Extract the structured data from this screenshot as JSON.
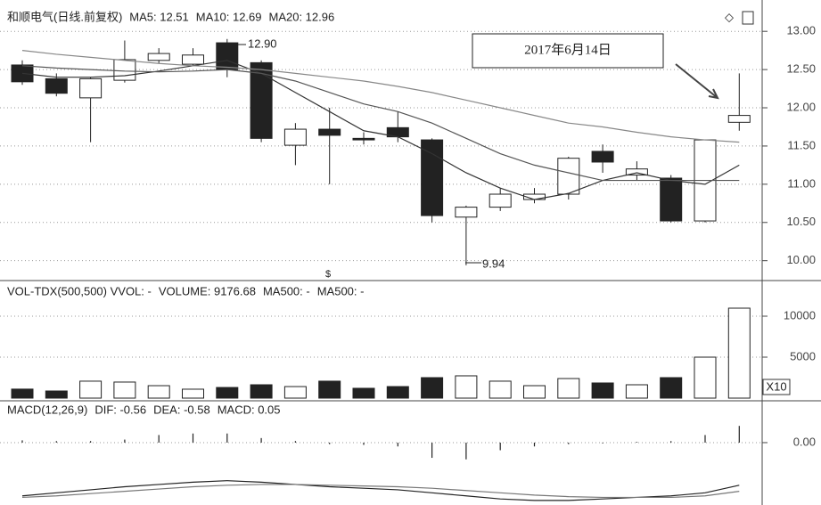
{
  "chart_data": [
    {
      "type": "candlestick",
      "header": [
        "和顺电气(日线.前复权)",
        "MA5: 12.51",
        "MA10: 12.69",
        "MA20: 12.96"
      ],
      "open": [
        12.56,
        12.38,
        12.13,
        12.36,
        12.62,
        12.57,
        12.85,
        12.59,
        11.51,
        11.72,
        11.6,
        11.74,
        11.58,
        10.57,
        10.7,
        10.8,
        10.87,
        11.43,
        11.12,
        11.08,
        10.52,
        11.81
      ],
      "close": [
        12.34,
        12.19,
        12.38,
        12.63,
        12.71,
        12.69,
        12.5,
        11.6,
        11.72,
        11.64,
        11.58,
        11.62,
        10.59,
        10.7,
        10.87,
        10.87,
        11.34,
        11.29,
        11.2,
        10.52,
        11.58,
        11.9
      ],
      "high": [
        12.62,
        12.45,
        12.4,
        12.88,
        12.78,
        12.78,
        12.9,
        12.62,
        11.8,
        12.0,
        11.68,
        11.95,
        11.6,
        10.72,
        10.95,
        10.95,
        11.36,
        11.52,
        11.3,
        11.12,
        11.58,
        12.45
      ],
      "low": [
        12.3,
        12.15,
        11.55,
        12.33,
        12.58,
        12.55,
        12.4,
        11.55,
        11.25,
        11.0,
        11.52,
        11.55,
        10.5,
        9.94,
        10.65,
        10.75,
        10.8,
        11.15,
        11.05,
        10.5,
        10.5,
        11.7
      ],
      "series": [
        {
          "color": "#333333",
          "values": [
            12.45,
            12.4,
            12.4,
            12.42,
            12.48,
            12.55,
            12.62,
            12.45,
            12.2,
            11.95,
            11.7,
            11.62,
            11.4,
            11.15,
            10.95,
            10.8,
            10.88,
            11.05,
            11.15,
            11.05,
            11.0,
            11.25
          ]
        },
        {
          "color": "#555555",
          "values": [
            12.55,
            12.52,
            12.5,
            12.48,
            12.47,
            12.48,
            12.5,
            12.45,
            12.35,
            12.2,
            12.05,
            11.95,
            11.8,
            11.6,
            11.4,
            11.25,
            11.15,
            11.05,
            11.05,
            11.05,
            11.05,
            11.05
          ]
        },
        {
          "color": "#888888",
          "values": [
            12.75,
            12.7,
            12.66,
            12.62,
            12.58,
            12.55,
            12.53,
            12.5,
            12.45,
            12.4,
            12.35,
            12.28,
            12.2,
            12.1,
            12.0,
            11.9,
            11.8,
            11.75,
            11.68,
            11.62,
            11.58,
            11.55
          ]
        }
      ],
      "annotations": [
        "12.90",
        "9.94",
        "2017年6月14日",
        "$"
      ],
      "ylim": [
        9.74,
        13.41
      ],
      "yticks": [
        {
          "value": 10,
          "label": "10.00"
        },
        {
          "value": 10.5,
          "label": "10.50"
        },
        {
          "value": 11,
          "label": "11.00"
        },
        {
          "value": 11.5,
          "label": "11.50"
        },
        {
          "value": 12,
          "label": "12.00"
        },
        {
          "value": 12.5,
          "label": "12.50"
        },
        {
          "value": 13,
          "label": "13.00"
        }
      ],
      "grid": true
    },
    {
      "type": "bar",
      "header": [
        "VOL-TDX(500,500) VVOL: -",
        "VOLUME: 9176.68",
        "MA500: -",
        "MA500: -"
      ],
      "unit_label": "X10",
      "values": [
        1100,
        870,
        2070,
        1960,
        1520,
        1090,
        1300,
        1630,
        1410,
        2070,
        1200,
        1410,
        2500,
        2720,
        2070,
        1520,
        2390,
        1850,
        1630,
        2500,
        5000,
        10980
      ],
      "ylim": [
        0,
        14350
      ],
      "yticks": [
        5000,
        10000
      ],
      "grid": true
    },
    {
      "type": "macd",
      "header": [
        "MACD(12,26,9)",
        "DIF: -0.56",
        "DEA: -0.58",
        "MACD: 0.05"
      ],
      "values": [
        0.03,
        0.02,
        0.02,
        0.04,
        0.1,
        0.12,
        0.12,
        0.06,
        0.02,
        -0.02,
        -0.03,
        -0.05,
        -0.2,
        -0.22,
        -0.1,
        -0.05,
        -0.02,
        -0.01,
        0.01,
        0.02,
        0.1,
        0.22
      ],
      "series": [
        {
          "color": "#222222",
          "values": [
            -0.7,
            -0.66,
            -0.62,
            -0.58,
            -0.55,
            -0.52,
            -0.5,
            -0.52,
            -0.55,
            -0.58,
            -0.6,
            -0.62,
            -0.66,
            -0.7,
            -0.74,
            -0.76,
            -0.76,
            -0.74,
            -0.72,
            -0.7,
            -0.66,
            -0.56
          ]
        },
        {
          "color": "#777777",
          "values": [
            -0.72,
            -0.7,
            -0.67,
            -0.64,
            -0.61,
            -0.58,
            -0.56,
            -0.55,
            -0.55,
            -0.56,
            -0.57,
            -0.58,
            -0.6,
            -0.63,
            -0.66,
            -0.69,
            -0.71,
            -0.72,
            -0.72,
            -0.72,
            -0.7,
            -0.64
          ]
        }
      ],
      "ylim": [
        -0.82,
        0.55
      ],
      "yticks": [
        {
          "value": 0,
          "label": "0.00"
        }
      ],
      "grid": true
    }
  ]
}
